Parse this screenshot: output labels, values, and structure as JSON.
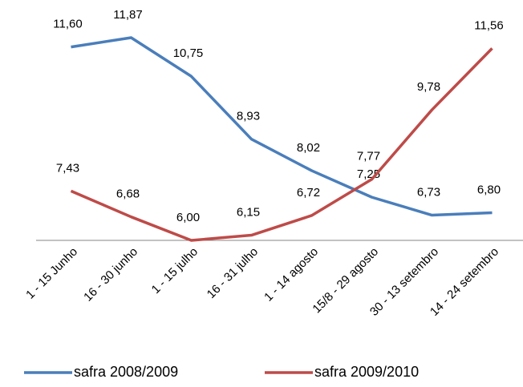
{
  "chart_data": {
    "type": "line",
    "categories": [
      "1 - 15 Junho",
      "16 - 30 junho",
      "1 - 15 julho",
      "16 - 31 julho",
      "1 - 14 agosto",
      "15/8 - 29 agosto",
      "30 - 13 setembro",
      "14 - 24 setembro"
    ],
    "series": [
      {
        "name": "safra 2008/2009",
        "color": "#4a7ebb",
        "values": [
          11.6,
          11.87,
          10.75,
          8.93,
          8.02,
          7.25,
          6.73,
          6.8
        ],
        "value_labels": [
          "11,60",
          "11,87",
          "10,75",
          "8,93",
          "8,02",
          "7,25",
          "6,73",
          "6,80"
        ]
      },
      {
        "name": "safra 2009/2010",
        "color": "#be4b48",
        "values": [
          7.43,
          6.68,
          6.0,
          6.15,
          6.72,
          7.77,
          9.78,
          11.56
        ],
        "value_labels": [
          "7,43",
          "6,68",
          "6,00",
          "6,15",
          "6,72",
          "7,77",
          "9,78",
          "11,56"
        ]
      }
    ],
    "ylim": [
      6,
      12
    ]
  }
}
